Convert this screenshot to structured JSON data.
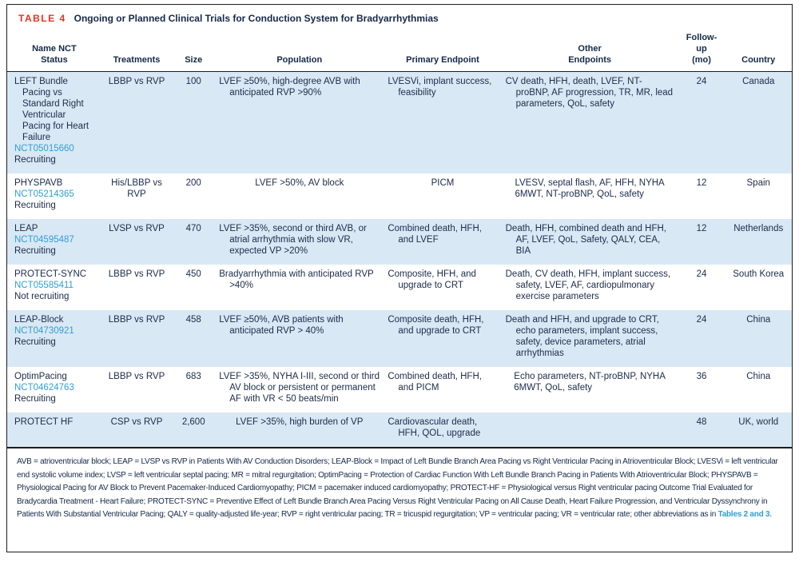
{
  "colors": {
    "label_red": "#e63323",
    "heading_navy": "#152847",
    "body_text": "#1c2b4a",
    "link_blue": "#2f9fd4",
    "row_alt_bg": "#d9e8f5",
    "border_dark": "#1c1c1c",
    "page_bg": "#ffffff"
  },
  "table": {
    "label": "TABLE 4",
    "title": "Ongoing or Planned Clinical Trials for Conduction System for Bradyarrhythmias",
    "columns": [
      {
        "id": "name",
        "lines": [
          "Name NCT",
          "Status"
        ]
      },
      {
        "id": "treatments",
        "lines": [
          "Treatments"
        ]
      },
      {
        "id": "size",
        "lines": [
          "Size"
        ]
      },
      {
        "id": "population",
        "lines": [
          "Population"
        ]
      },
      {
        "id": "primary-endpoint",
        "lines": [
          "Primary Endpoint"
        ]
      },
      {
        "id": "other-endpoints",
        "lines": [
          "Other",
          "Endpoints"
        ]
      },
      {
        "id": "followup",
        "lines": [
          "Follow-up",
          "(mo)"
        ]
      },
      {
        "id": "country",
        "lines": [
          "Country"
        ]
      }
    ],
    "rows": [
      {
        "name": "LEFT Bundle Pacing vs Standard Right Ventricular Pacing for Heart Failure",
        "nct": "NCT05015660",
        "status": "Recruiting",
        "treatments": "LBBP vs RVP",
        "size": "100",
        "population": "LVEF ≥50%, high-degree AVB with anticipated RVP >90%",
        "primary_endpoint": "LVESVi, implant success, feasibility",
        "other_endpoints": [
          "CV death, HFH, death, LVEF, NT-proBNP, AF progression, TR, MR, lead parameters, QoL, safety"
        ],
        "followup": "24",
        "country": "Canada"
      },
      {
        "name": "PHYSPAVB",
        "nct": "NCT05214365",
        "status": "Recruiting",
        "treatments": "His/LBBP vs RVP",
        "size": "200",
        "population": "LVEF >50%, AV block",
        "primary_endpoint": "PICM",
        "other_endpoints": [
          "LVESV, septal flash, AF, HFH, NYHA",
          "6MWT, NT-proBNP, QoL, safety"
        ],
        "followup": "12",
        "country": "Spain"
      },
      {
        "name": "LEAP",
        "nct": "NCT04595487",
        "status": "Recruiting",
        "treatments": "LVSP vs RVP",
        "size": "470",
        "population": "LVEF >35%, second or third AVB, or atrial arrhythmia with slow VR, expected VP >20%",
        "primary_endpoint": "Combined death, HFH, and LVEF",
        "other_endpoints": [
          "Death, HFH, combined death and HFH, AF, LVEF, QoL, Safety, QALY, CEA, BIA"
        ],
        "followup": "12",
        "country": "Netherlands"
      },
      {
        "name": "PROTECT-SYNC",
        "nct": "NCT05585411",
        "status": "Not recruiting",
        "treatments": "LBBP vs RVP",
        "size": "450",
        "population": "Bradyarrhythmia with anticipated RVP >40%",
        "primary_endpoint": "Composite, HFH, and upgrade to CRT",
        "other_endpoints": [
          "Death, CV death, HFH, implant success, safety, LVEF, AF, cardiopulmonary exercise parameters"
        ],
        "followup": "24",
        "country": "South Korea"
      },
      {
        "name": "LEAP-Block",
        "nct": "NCT04730921",
        "status": "Recruiting",
        "treatments": "LBBP vs RVP",
        "size": "458",
        "population": "LVEF ≥50%, AVB patients with anticipated RVP > 40%",
        "primary_endpoint": "Composite death, HFH, and upgrade to CRT",
        "other_endpoints": [
          "Death and HFH, and upgrade to CRT, echo parameters, implant success, safety, device parameters, atrial arrhythmias"
        ],
        "followup": "24",
        "country": "China"
      },
      {
        "name": "OptimPacing",
        "nct": "NCT04624763",
        "status": "Recruiting",
        "treatments": "LBBP vs RVP",
        "size": "683",
        "population": "LVEF >35%, NYHA I-III, second or third AV block or persistent or permanent AF with VR < 50 beats/min",
        "primary_endpoint": "Combined death, HFH, and PICM",
        "other_endpoints": [
          "Echo parameters, NT-proBNP, NYHA",
          "6MWT, QoL, safety"
        ],
        "followup": "36",
        "country": "China"
      },
      {
        "name": "PROTECT HF",
        "nct": "",
        "status": "",
        "treatments": "CSP vs RVP",
        "size": "2,600",
        "population": "LVEF >35%, high burden of VP",
        "primary_endpoint": "Cardiovascular death, HFH, QOL, upgrade",
        "other_endpoints": [],
        "followup": "48",
        "country": "UK, world"
      }
    ],
    "footnote": {
      "text": "AVB = atrioventricular block; LEAP = LVSP vs RVP in Patients With AV Conduction Disorders; LEAP-Block = Impact of Left Bundle Branch Area Pacing vs Right Ventricular Pacing in Atrioventricular Block; LVESVi = left ventricular end systolic volume index; LVSP = left ventricular septal pacing; MR = mitral regurgitation; OptimPacing = Protection of Cardiac Function With Left Bundle Branch Pacing in Patients With Atrioventricular Block; PHYSPAVB = Physiological Pacing for AV Block to Prevent Pacemaker-Induced Cardiomyopathy; PICM = pacemaker induced cardiomyopathy; PROTECT-HF = Physiological versus Right ventricular pacing Outcome Trial Evaluated for Bradycardia Treatment - Heart Failure; PROTECT-SYNC = Preventive Effect of Left Bundle Branch Area Pacing Versus Right Ventricular Pacing on All Cause Death, Heart Failure Progression, and Ventricular Dyssynchrony in Patients With Substantial Ventricular Pacing; QALY = quality-adjusted life-year; RVP = right ventricular pacing; TR = tricuspid regurgitation; VP = ventricular pacing; VR = ventricular rate; other abbreviations as in ",
      "link_text": "Tables 2 and 3",
      "after_link": "."
    }
  }
}
